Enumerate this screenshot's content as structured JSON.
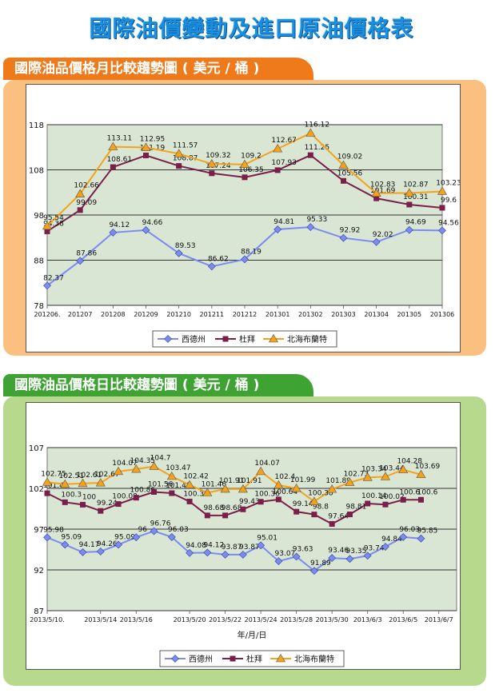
{
  "header": {
    "title": "國際油價變動及進口原油價格表"
  },
  "colors": {
    "west_texas": "#7b8bef",
    "dubai": "#7a1e4a",
    "brent": "#f5a21a",
    "plot_bg": "#d9e6d4"
  },
  "sections": {
    "monthly": {
      "title": "國際油品價格月比較趨勢圖 ( 美元 / 桶 )"
    },
    "daily": {
      "title": "國際油品價格日比較趨勢圖 ( 美元 / 桶 )"
    }
  },
  "chart_data": [
    {
      "type": "line",
      "x": [
        "201206.",
        "201207",
        "201208",
        "201209",
        "201210",
        "201211",
        "201212",
        "201301",
        "201302",
        "201303",
        "201304",
        "201305",
        "201306"
      ],
      "xlabel": "",
      "ylabel": "",
      "ylim": [
        78,
        118
      ],
      "yticks": [
        78,
        88,
        98,
        108,
        118
      ],
      "grid": true,
      "legend": "bottom",
      "series": [
        {
          "name": "西德州",
          "values": [
            82.37,
            87.86,
            94.12,
            94.66,
            89.53,
            86.62,
            88.19,
            94.81,
            95.33,
            92.92,
            92.02,
            94.69,
            94.56
          ]
        },
        {
          "name": "杜拜",
          "values": [
            94.38,
            99.09,
            108.61,
            111.19,
            108.87,
            107.24,
            106.35,
            107.93,
            111.25,
            105.56,
            101.69,
            100.31,
            99.6
          ]
        },
        {
          "name": "北海布蘭特",
          "values": [
            95.54,
            102.66,
            113.11,
            112.95,
            111.57,
            109.32,
            109.2,
            112.67,
            116.12,
            109.02,
            102.83,
            102.87,
            103.23
          ]
        }
      ]
    },
    {
      "type": "line",
      "x": [
        "2013/5/10.",
        "",
        "",
        "2013/5/14",
        "",
        "2013/5/16",
        "",
        "",
        "2013/5/20",
        "",
        "2013/5/22",
        "",
        "2013/5/24",
        "",
        "2013/5/28",
        "",
        "2013/5/30",
        "",
        "2013/6/3",
        "",
        "2013/6/5",
        "",
        "2013/6/7",
        ""
      ],
      "xlabel": "年/月/日",
      "ylabel": "",
      "ylim": [
        87,
        107
      ],
      "yticks": [
        87,
        92,
        97,
        102,
        107
      ],
      "grid": true,
      "legend": "bottom",
      "series": [
        {
          "name": "西德州",
          "values": [
            95.98,
            95.09,
            94.17,
            94.26,
            95.09,
            96,
            96.76,
            96.03,
            94.08,
            94.12,
            93.87,
            93.87,
            95.01,
            93.07,
            93.63,
            91.89,
            93.46,
            93.35,
            93.74,
            94.84,
            96.03,
            95.85,
            null,
            null
          ]
        },
        {
          "name": "杜拜",
          "values": [
            101.4,
            100.3,
            100,
            99.24,
            100.08,
            100.86,
            101.56,
            101.41,
            100.39,
            98.68,
            98.68,
            99.43,
            100.36,
            100.64,
            99.14,
            98.8,
            97.64,
            98.81,
            100.14,
            100.02,
            100.6,
            100.6,
            null,
            null
          ]
        },
        {
          "name": "北海布蘭特",
          "values": [
            102.75,
            102.51,
            102.61,
            102.67,
            104.07,
            104.35,
            104.7,
            103.47,
            102.42,
            101.46,
            101.91,
            101.91,
            104.07,
            102.4,
            101.99,
            100.38,
            101.89,
            102.73,
            103.34,
            103.44,
            104.28,
            103.69,
            null,
            null
          ]
        }
      ]
    }
  ]
}
